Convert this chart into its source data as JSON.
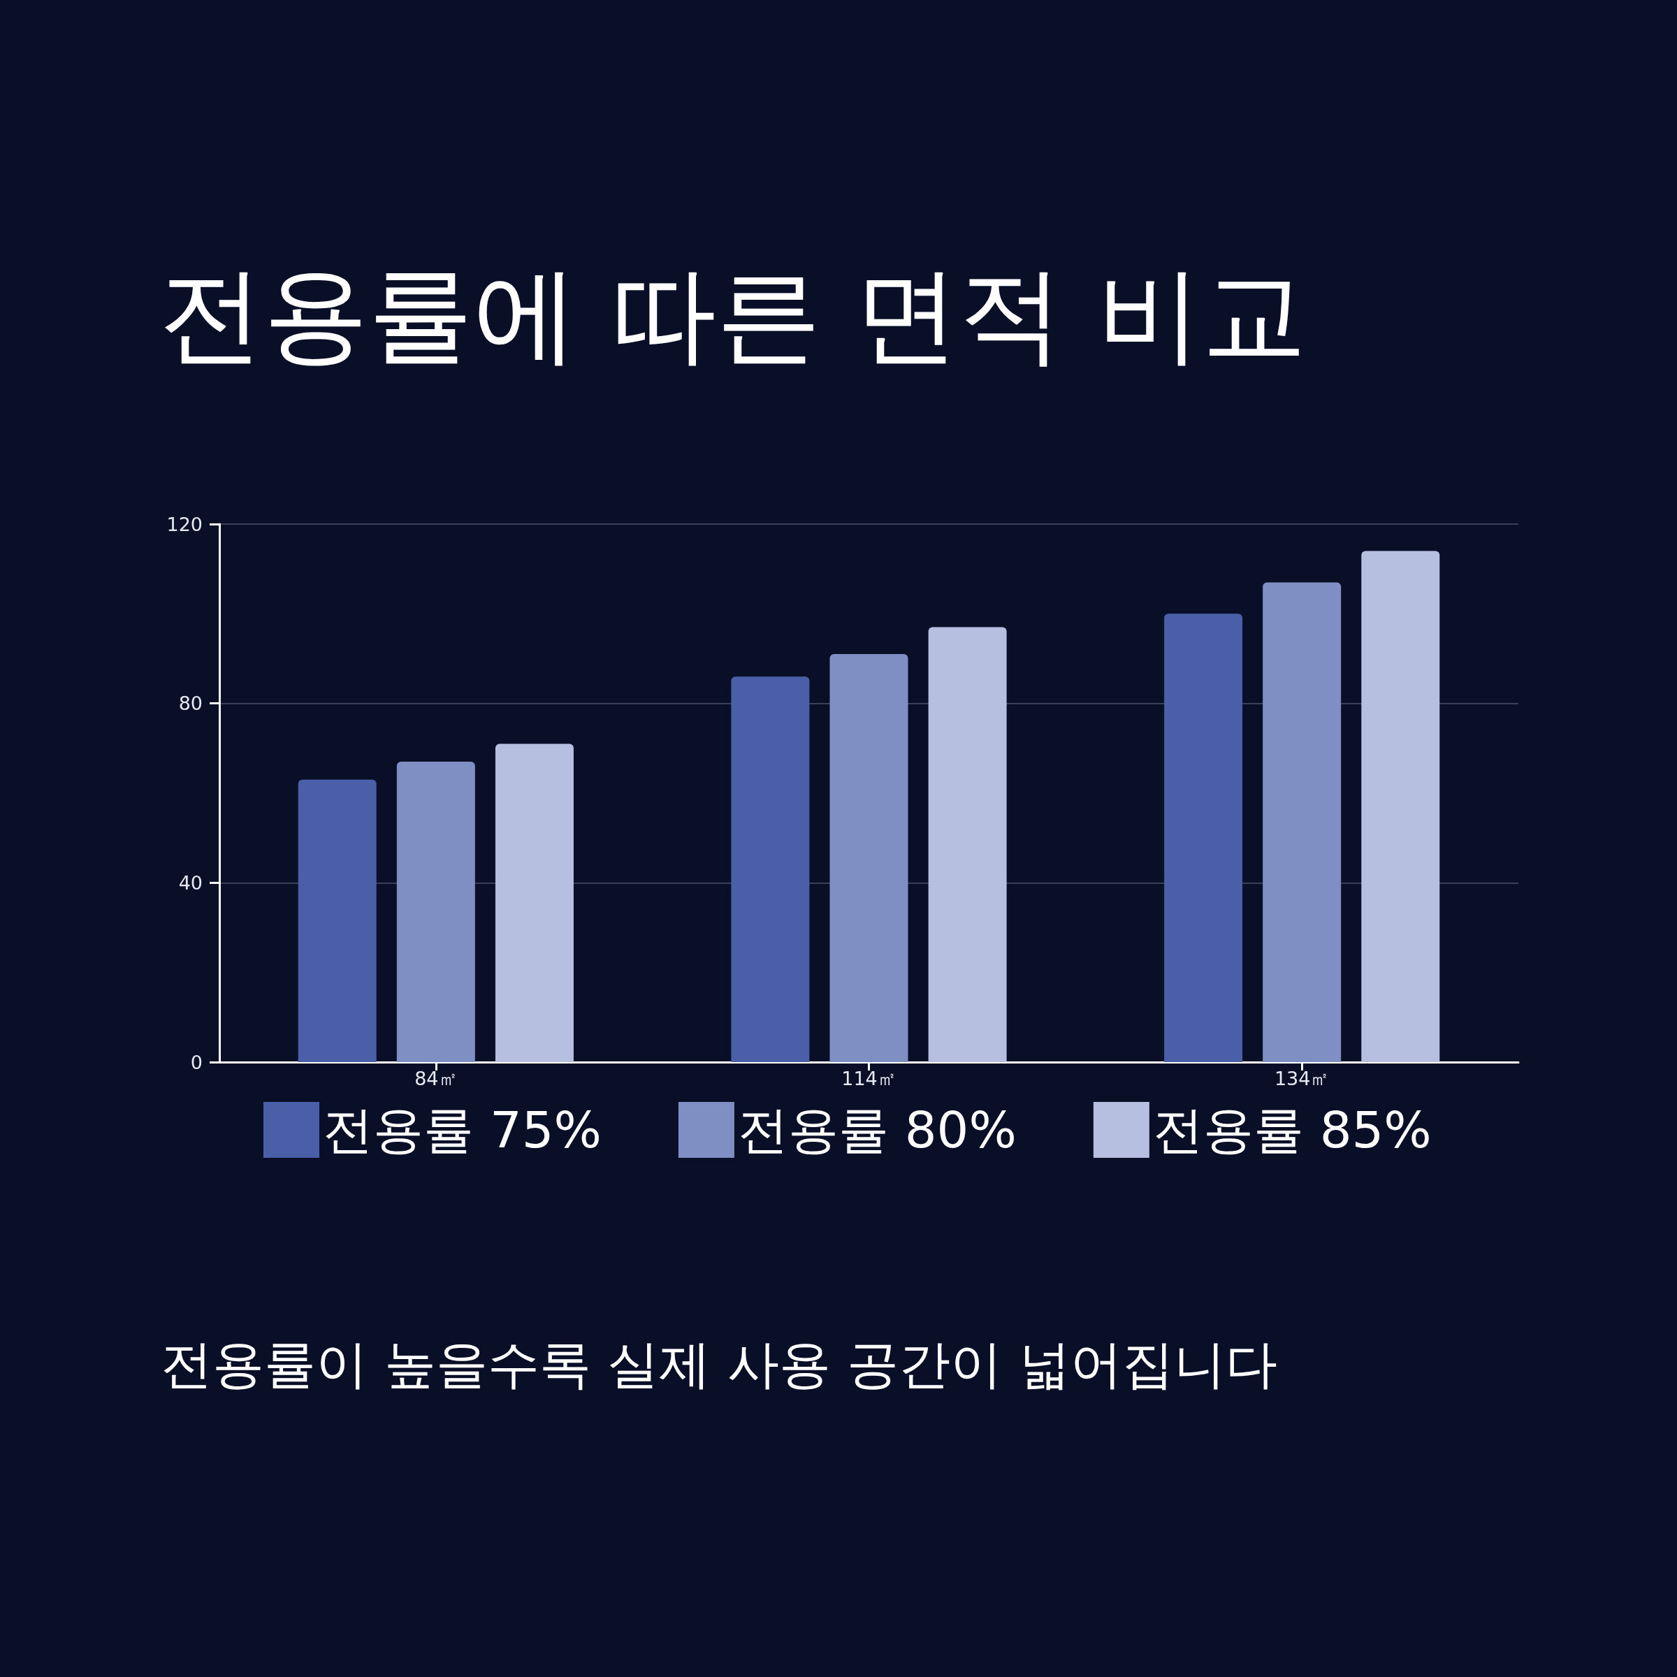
{
  "chart_data": {
    "type": "bar",
    "title": "전용률에 따른 면적 비교",
    "categories": [
      "84㎡",
      "114㎡",
      "134㎡"
    ],
    "series": [
      {
        "name": "전용률 75%",
        "color": "#4b5fa8",
        "values": [
          63,
          86,
          100
        ]
      },
      {
        "name": "전용률 80%",
        "color": "#7f8fc4",
        "values": [
          67,
          91,
          107
        ]
      },
      {
        "name": "전용률 85%",
        "color": "#b7bfe0",
        "values": [
          71,
          97,
          114
        ]
      }
    ],
    "ylim": [
      0,
      120
    ],
    "yticks": [
      0,
      40,
      80,
      120
    ],
    "grid": "y",
    "legend": "bottom",
    "annotations": [
      "전용률이 높을수록 실제 사용 공간이 넓어집니다"
    ]
  }
}
